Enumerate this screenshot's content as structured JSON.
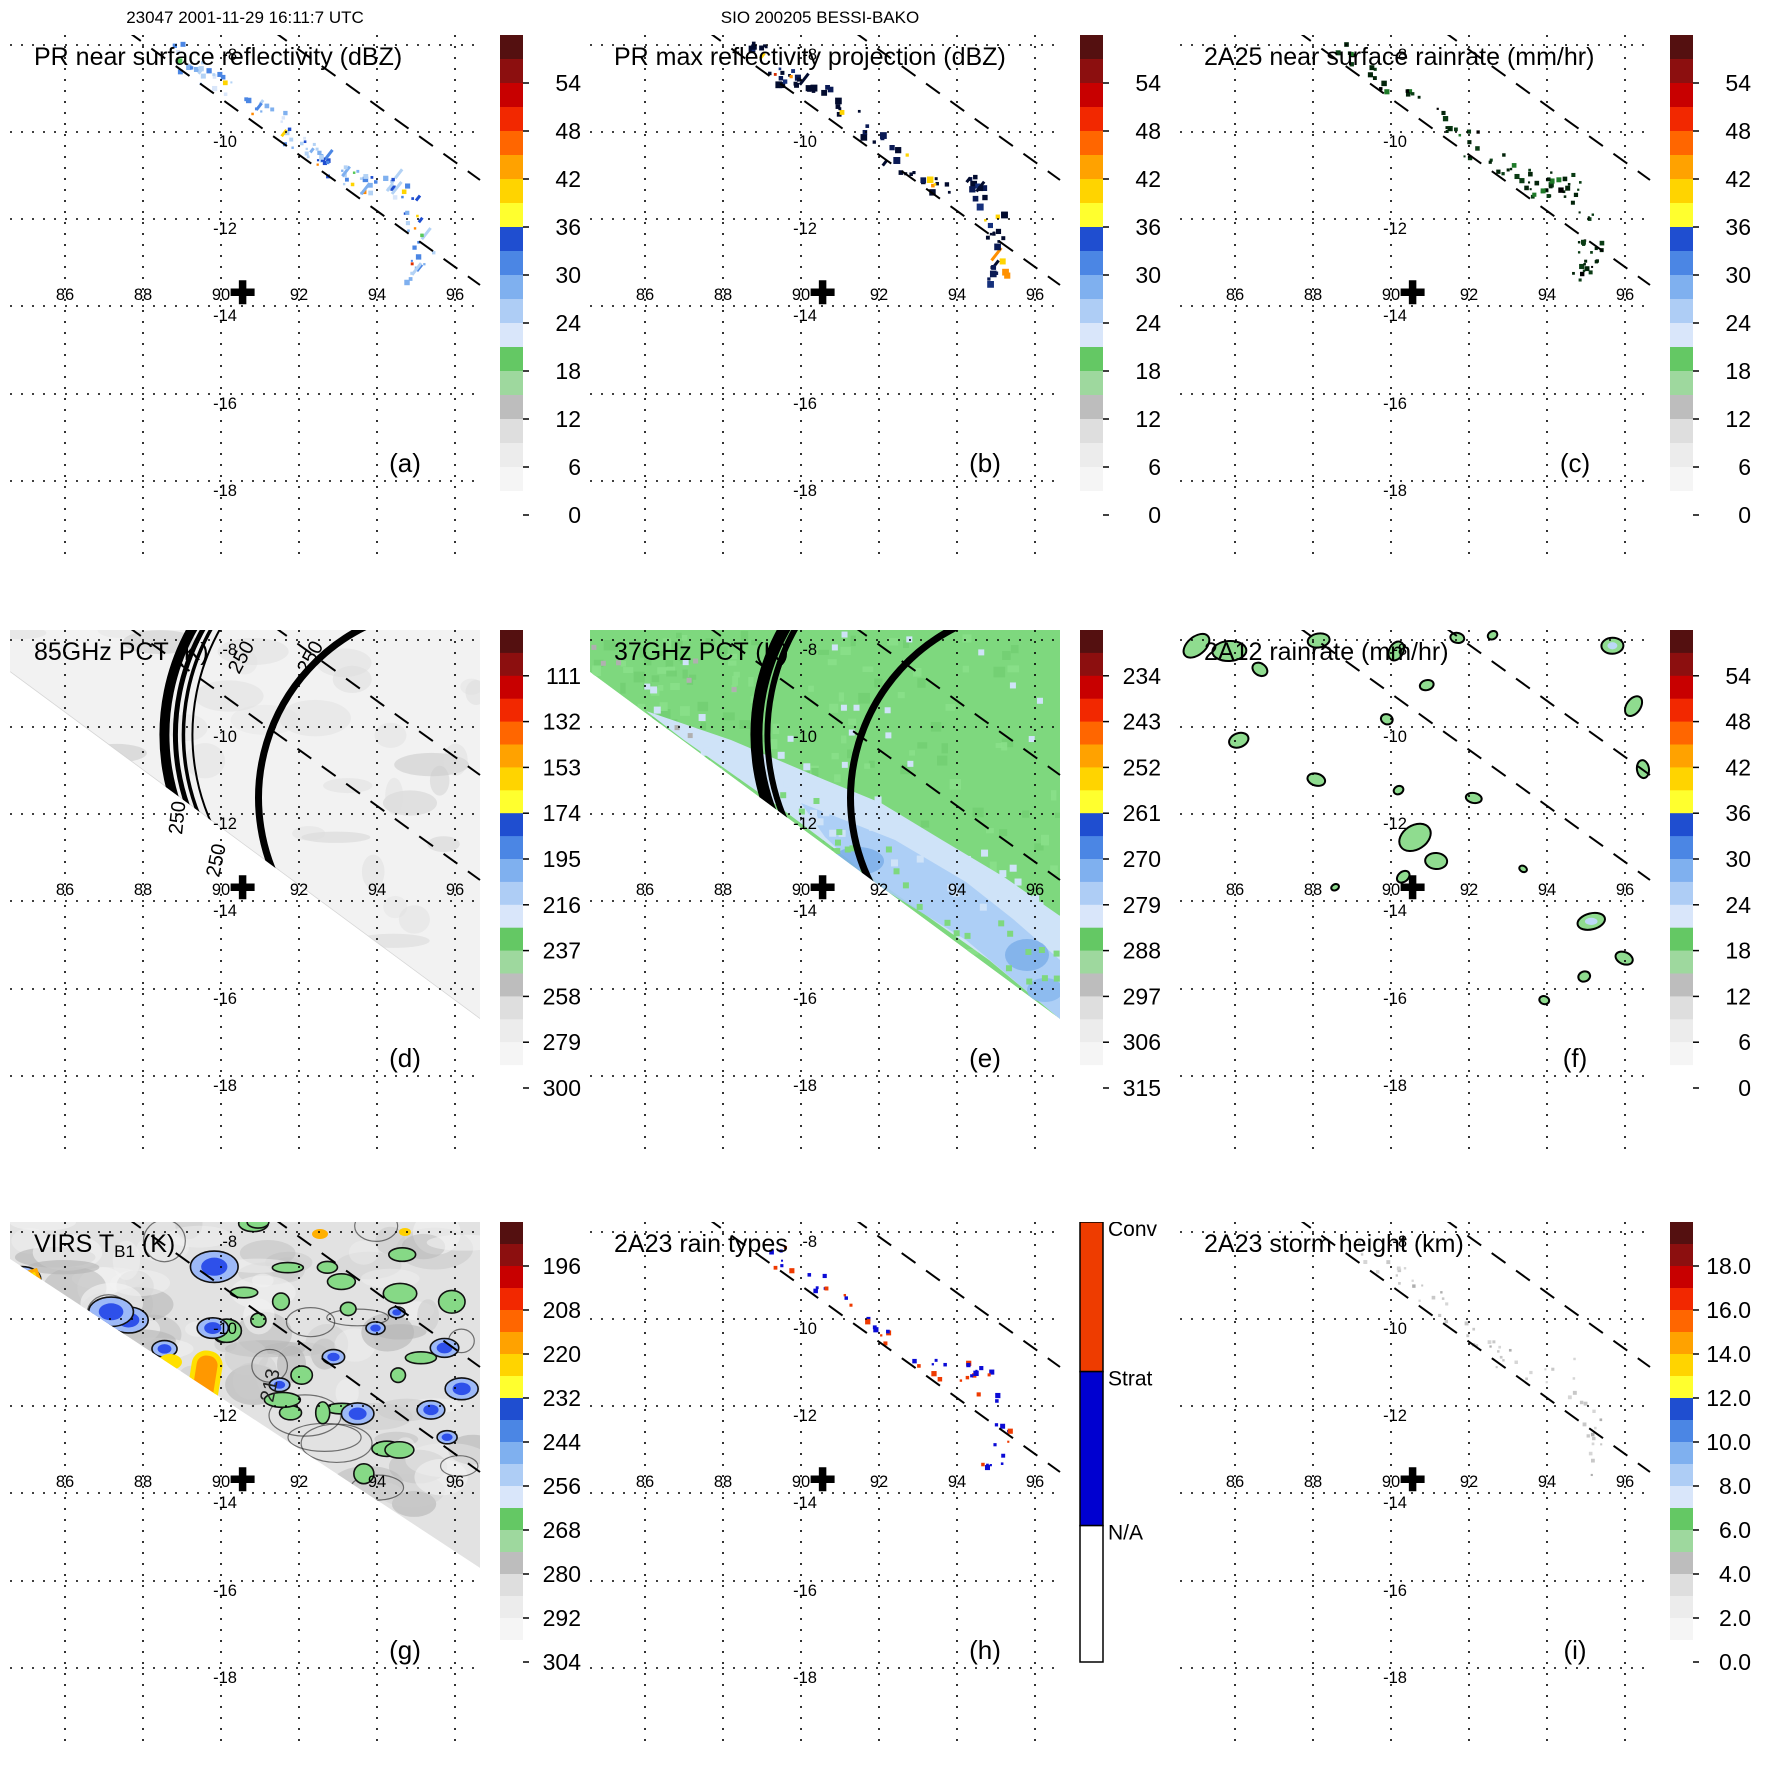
{
  "figure": {
    "header_left": "23047 2001-11-29 16:11:7 UTC",
    "header_center": "SIO 200205 BESSI-BAKO",
    "background": "#ffffff",
    "axes": {
      "lon_ticks": [
        86,
        88,
        90,
        92,
        94,
        96
      ],
      "lat_ticks": [
        -8,
        -10,
        -12,
        -14,
        -16,
        -18
      ]
    },
    "marker": {
      "lon": 90.5,
      "lat": -13.7,
      "symbol": "plus"
    },
    "palette_bottom_to_top": [
      "#ffffff",
      "#f5f5f5",
      "#ececec",
      "#dedede",
      "#bdbdbd",
      "#9ed89e",
      "#64c864",
      "#d9e6fa",
      "#aecdf5",
      "#7fb0ef",
      "#4b86e4",
      "#1f4ed0",
      "#ffff2e",
      "#ffd400",
      "#ffa200",
      "#ff6600",
      "#f22800",
      "#c80000",
      "#8c0f0f",
      "#541010"
    ]
  },
  "panels": [
    {
      "id": "a",
      "letter": "(a)",
      "title": "PR near surface reflectivity (dBZ)",
      "row": 0,
      "col": 0,
      "content": "specks",
      "seed": 11,
      "count": 120,
      "speck_colors": [
        [
          "#b3d2f5",
          30
        ],
        [
          "#7fb0ef",
          25
        ],
        [
          "#4b86e4",
          15
        ],
        [
          "#1f4ed0",
          8
        ],
        [
          "#d9e6fa",
          12
        ],
        [
          "#59c859",
          3
        ],
        [
          "#ffd400",
          3
        ],
        [
          "#ff8800",
          2
        ],
        [
          "#e03000",
          2
        ]
      ],
      "colorbar": {
        "kind": "scale",
        "labels": [
          "54",
          "48",
          "42",
          "36",
          "30",
          "24",
          "18",
          "12",
          "6",
          "0"
        ]
      }
    },
    {
      "id": "b",
      "letter": "(b)",
      "title": "PR max reflectivity projection (dBZ)",
      "row": 0,
      "col": 1,
      "content": "specks",
      "seed": 23,
      "count": 100,
      "speck_colors": [
        [
          "#020b2e",
          55
        ],
        [
          "#0a1a55",
          22
        ],
        [
          "#15307c",
          8
        ],
        [
          "#ffd400",
          6
        ],
        [
          "#ff9000",
          5
        ],
        [
          "#d42a00",
          4
        ]
      ],
      "colorbar": {
        "kind": "scale",
        "labels": [
          "54",
          "48",
          "42",
          "36",
          "30",
          "24",
          "18",
          "12",
          "6",
          "0"
        ]
      }
    },
    {
      "id": "c",
      "letter": "(c)",
      "title": "2A25 near surface rainrate (mm/hr)",
      "row": 0,
      "col": 2,
      "content": "specks",
      "seed": 37,
      "count": 100,
      "speck_colors": [
        [
          "#03240a",
          48
        ],
        [
          "#0a3c14",
          30
        ],
        [
          "#000000",
          12
        ],
        [
          "#1e7a28",
          10
        ]
      ],
      "colorbar": {
        "kind": "scale",
        "labels": [
          "54",
          "48",
          "42",
          "36",
          "30",
          "24",
          "18",
          "12",
          "6",
          "0"
        ]
      }
    },
    {
      "id": "d",
      "letter": "(d)",
      "title": "85GHz PCT (K)",
      "row": 1,
      "col": 0,
      "content": "pct85",
      "seed": 41,
      "contour_labels": [
        "250",
        "250",
        "250",
        "250"
      ],
      "colorbar": {
        "kind": "scale",
        "labels": [
          "111",
          "132",
          "153",
          "174",
          "195",
          "216",
          "237",
          "258",
          "279",
          "300"
        ]
      }
    },
    {
      "id": "e",
      "letter": "(e)",
      "title": "37GHz PCT (K)",
      "row": 1,
      "col": 1,
      "content": "pct37",
      "seed": 53,
      "colorbar": {
        "kind": "scale",
        "labels": [
          "234",
          "243",
          "252",
          "261",
          "270",
          "279",
          "288",
          "297",
          "306",
          "315"
        ]
      }
    },
    {
      "id": "f",
      "letter": "(f)",
      "title": "2A12 rainrate (mm/hr)",
      "row": 1,
      "col": 2,
      "content": "rainblobs",
      "seed": 61,
      "blob_fill": "#8fdc8f",
      "blob_inner": "#bcd8f7",
      "colorbar": {
        "kind": "scale",
        "labels": [
          "54",
          "48",
          "42",
          "36",
          "30",
          "24",
          "18",
          "12",
          "6",
          "0"
        ]
      }
    },
    {
      "id": "g",
      "letter": "(g)",
      "title": "VIRS T_B1 (K)",
      "row": 2,
      "col": 0,
      "content": "virs",
      "seed": 71,
      "contour_labels": [
        "213"
      ],
      "colorbar": {
        "kind": "scale",
        "labels": [
          "196",
          "208",
          "220",
          "232",
          "244",
          "256",
          "268",
          "280",
          "292",
          "304"
        ]
      }
    },
    {
      "id": "h",
      "letter": "(h)",
      "title": "2A23 rain types",
      "row": 2,
      "col": 1,
      "content": "specks",
      "seed": 83,
      "count": 58,
      "speck_colors": [
        [
          "#0b0bd6",
          55
        ],
        [
          "#ee3a00",
          45
        ]
      ],
      "colorbar": {
        "kind": "classes",
        "classes": [
          {
            "label": "Conv",
            "color": "#ee3c00"
          },
          {
            "label": "Strat",
            "color": "#0000d0"
          },
          {
            "label": "N/A",
            "color": "#ffffff"
          }
        ]
      }
    },
    {
      "id": "i",
      "letter": "(i)",
      "title": "2A23 storm height (km)",
      "row": 2,
      "col": 2,
      "content": "specks",
      "seed": 97,
      "count": 60,
      "speck_colors": [
        [
          "#c8c8c8",
          55
        ],
        [
          "#d6d6d6",
          30
        ],
        [
          "#aeaeae",
          15
        ]
      ],
      "colorbar": {
        "kind": "scale",
        "labels": [
          "18.0",
          "16.0",
          "14.0",
          "12.0",
          "10.0",
          "8.0",
          "6.0",
          "4.0",
          "2.0",
          "0.0"
        ]
      }
    }
  ],
  "chart_data": [
    {
      "panel": "a",
      "type": "heatmap",
      "title": "PR near surface reflectivity (dBZ)",
      "units": "dBZ",
      "lon_range": [
        84.6,
        96.6
      ],
      "lat_range": [
        -19.8,
        -7.8
      ],
      "lon_ticks": [
        86,
        88,
        90,
        92,
        94,
        96
      ],
      "lat_ticks": [
        -8,
        -10,
        -12,
        -14,
        -16,
        -18
      ],
      "colorbar_ticks": [
        0,
        6,
        12,
        18,
        24,
        30,
        36,
        42,
        48,
        54
      ],
      "features": "Narrow broken band of weak echoes (mostly 18-36 dBZ, isolated cores >42 dBZ) along the PR swath from about (89E,-8) to (95.5E,-13); PR swath edges shown as two dashed diagonal lines; storm center plus sign at 90.5E, -13.7"
    },
    {
      "panel": "b",
      "type": "heatmap",
      "title": "PR max reflectivity projection (dBZ)",
      "units": "dBZ",
      "colorbar_ticks": [
        0,
        6,
        12,
        18,
        24,
        30,
        36,
        42,
        48,
        54
      ],
      "features": "Same band as (a) but stronger values (dark blue 30-36 dBZ blobs with small yellow/orange cores >40 dBZ near 95E,-12.5)"
    },
    {
      "panel": "c",
      "type": "heatmap",
      "title": "2A25 near surface rainrate (mm/hr)",
      "units": "mm/hr",
      "colorbar_ticks": [
        0,
        6,
        12,
        18,
        24,
        30,
        36,
        42,
        48,
        54
      ],
      "features": "Light rain band (<18 mm/hr, dark green pixels) matching the reflectivity band"
    },
    {
      "panel": "d",
      "type": "heatmap",
      "title": "85GHz PCT (K)",
      "units": "K",
      "colorbar_ticks": [
        111,
        132,
        153,
        174,
        195,
        216,
        237,
        258,
        279,
        300
      ],
      "features": "TMI swath (upper-right of diagonal) with PCT near 280-300 K (near white); thick black arc artifacts with 250 K contour labels"
    },
    {
      "panel": "e",
      "type": "heatmap",
      "title": "37GHz PCT (K)",
      "units": "K",
      "colorbar_ticks": [
        234,
        243,
        252,
        261,
        270,
        279,
        288,
        297,
        306,
        315
      ],
      "features": "Swath mostly ~285-292 K (green) with a 270-282 K pale-blue region south of the storm center; same black arc artifacts"
    },
    {
      "panel": "f",
      "type": "heatmap",
      "title": "2A12 rainrate (mm/hr)",
      "units": "mm/hr",
      "colorbar_ticks": [
        0,
        6,
        12,
        18,
        24,
        30,
        36,
        42,
        48,
        54
      ],
      "features": "Scattered light-rain patches (<12 mm/hr, green with black outlines) across the TMI swath"
    },
    {
      "panel": "g",
      "type": "heatmap",
      "title": "VIRS TB1 (K)",
      "units": "K",
      "colorbar_ticks": [
        196,
        208,
        220,
        232,
        244,
        256,
        268,
        280,
        292,
        304
      ],
      "features": "IR cloud-top temperatures: widespread 280-304 K (gray) with cold clusters 232-268 K (blue/green, contoured) and coldest cores ~200-220 K (yellow/orange) near the swath edge around 88-90.5E; 213 K contour label"
    },
    {
      "panel": "h",
      "type": "categorical-map",
      "title": "2A23 rain types",
      "classes": [
        "Conv",
        "Strat",
        "N/A"
      ],
      "features": "Sparse convective (orange-red) and stratiform (blue) pixels along the PR rain band"
    },
    {
      "panel": "i",
      "type": "heatmap",
      "title": "2A23 storm height (km)",
      "units": "km",
      "colorbar_ticks": [
        0.0,
        2.0,
        4.0,
        6.0,
        8.0,
        10.0,
        12.0,
        14.0,
        16.0,
        18.0
      ],
      "features": "Storm heights mostly 2-6 km (faint gray dots) along the rain band"
    }
  ]
}
